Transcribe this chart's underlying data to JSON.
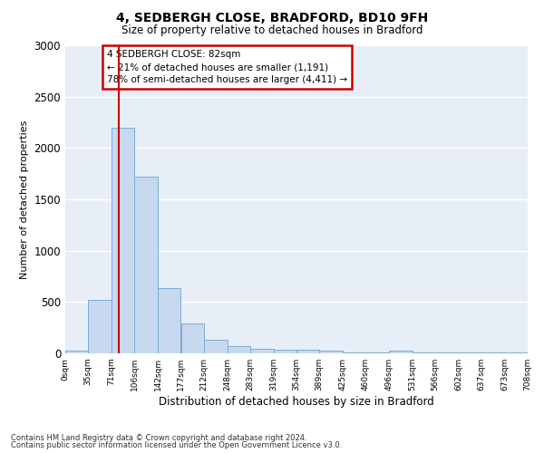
{
  "title_line1": "4, SEDBERGH CLOSE, BRADFORD, BD10 9FH",
  "title_line2": "Size of property relative to detached houses in Bradford",
  "xlabel": "Distribution of detached houses by size in Bradford",
  "ylabel": "Number of detached properties",
  "bar_color": "#c8d8ee",
  "bar_edgecolor": "#7aadd4",
  "axes_bg_color": "#e8eef8",
  "fig_bg_color": "#ffffff",
  "grid_color": "#ffffff",
  "vline_color": "#cc0000",
  "vline_x": 82,
  "bin_edges": [
    0,
    35,
    71,
    106,
    142,
    177,
    212,
    248,
    283,
    319,
    354,
    389,
    425,
    460,
    496,
    531,
    566,
    602,
    637,
    673,
    708
  ],
  "bar_heights": [
    30,
    520,
    2200,
    1720,
    635,
    290,
    130,
    75,
    45,
    35,
    35,
    25,
    10,
    10,
    25,
    10,
    10,
    10,
    10,
    10
  ],
  "ylim": [
    0,
    3000
  ],
  "yticks": [
    0,
    500,
    1000,
    1500,
    2000,
    2500,
    3000
  ],
  "annotation_text": "4 SEDBERGH CLOSE: 82sqm\n← 21% of detached houses are smaller (1,191)\n78% of semi-detached houses are larger (4,411) →",
  "annotation_box_facecolor": "#ffffff",
  "annotation_box_edgecolor": "#cc0000",
  "footnote_line1": "Contains HM Land Registry data © Crown copyright and database right 2024.",
  "footnote_line2": "Contains public sector information licensed under the Open Government Licence v3.0."
}
